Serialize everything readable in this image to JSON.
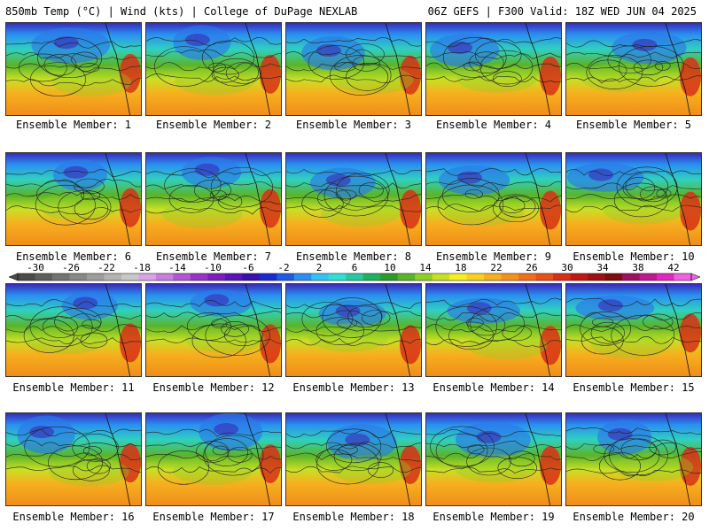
{
  "header": {
    "title_left": "850mb Temp (°C) | Wind (kts) | College of DuPage NEXLAB",
    "title_right": "06Z GEFS | F300 Valid: 18Z WED JUN 04 2025"
  },
  "panels": [
    {
      "label": "Ensemble Member: 1"
    },
    {
      "label": "Ensemble Member: 2"
    },
    {
      "label": "Ensemble Member: 3"
    },
    {
      "label": "Ensemble Member: 4"
    },
    {
      "label": "Ensemble Member: 5"
    },
    {
      "label": "Ensemble Member: 6"
    },
    {
      "label": "Ensemble Member: 7"
    },
    {
      "label": "Ensemble Member: 8"
    },
    {
      "label": "Ensemble Member: 9"
    },
    {
      "label": "Ensemble Member: 10"
    },
    {
      "label": "Ensemble Member: 11"
    },
    {
      "label": "Ensemble Member: 12"
    },
    {
      "label": "Ensemble Member: 13"
    },
    {
      "label": "Ensemble Member: 14"
    },
    {
      "label": "Ensemble Member: 15"
    },
    {
      "label": "Ensemble Member: 16"
    },
    {
      "label": "Ensemble Member: 17"
    },
    {
      "label": "Ensemble Member: 18"
    },
    {
      "label": "Ensemble Member: 19"
    },
    {
      "label": "Ensemble Member: 20"
    }
  ],
  "chart_data": {
    "type": "heatmap",
    "colorbar": {
      "ticks": [
        -30,
        -26,
        -22,
        -18,
        -14,
        -10,
        -6,
        -2,
        2,
        6,
        10,
        14,
        18,
        22,
        26,
        30,
        34,
        38,
        42
      ],
      "range": [
        -32,
        44
      ],
      "step": 2,
      "colors": [
        "#4a4a4a",
        "#5e5e5e",
        "#737373",
        "#888888",
        "#9d9d9d",
        "#b3b3b3",
        "#c8c8c8",
        "#d9a3e8",
        "#c77dde",
        "#b256d4",
        "#9a33c8",
        "#7d1fc0",
        "#5a14b8",
        "#3a10b0",
        "#1a2ad0",
        "#1f5ae6",
        "#2a8ef2",
        "#33c2f5",
        "#2fe0d8",
        "#28c8a0",
        "#1fb060",
        "#2e9a2e",
        "#5ab42a",
        "#8fce26",
        "#c8e024",
        "#f4ee22",
        "#f8d020",
        "#f6b01e",
        "#f4901c",
        "#f0701a",
        "#e85018",
        "#d83016",
        "#c01814",
        "#a01010",
        "#800c0c",
        "#a01060",
        "#c01890",
        "#e028c0",
        "#f060e0"
      ]
    }
  }
}
